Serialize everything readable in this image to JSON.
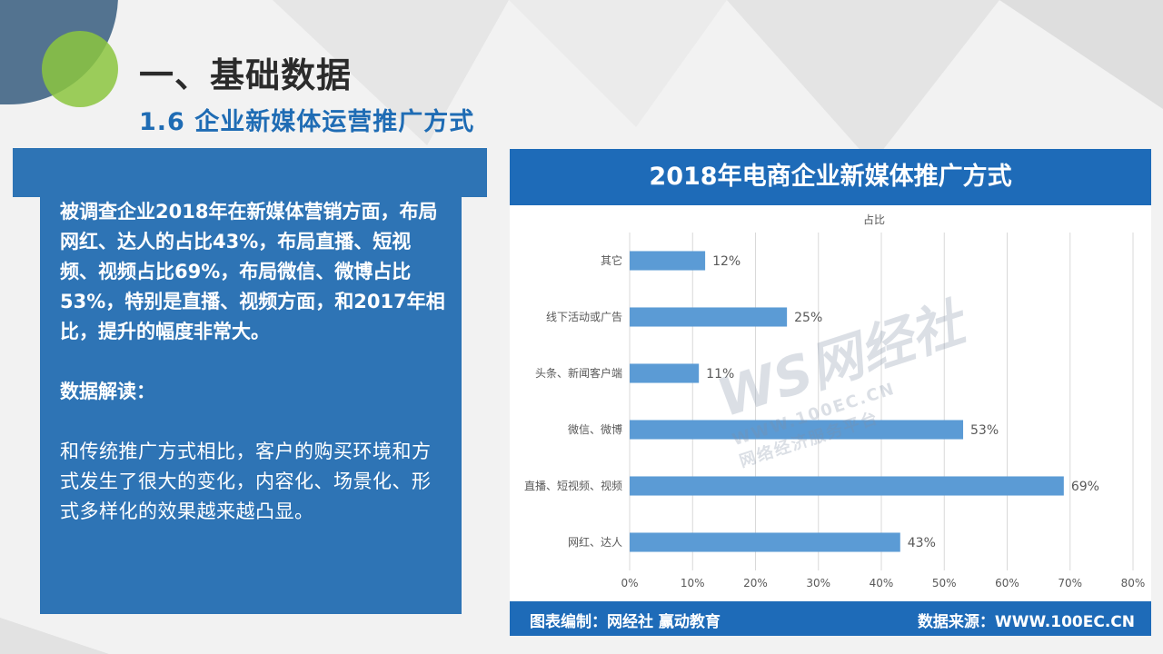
{
  "page": {
    "title": "一、基础数据",
    "subtitle": "1.6 企业新媒体运营推广方式"
  },
  "panel": {
    "paragraph1": "被调查企业2018年在新媒体营销方面，布局网红、达人的占比43%，布局直播、短视频、视频占比69%，布局微信、微博占比53%，特别是直播、视频方面，和2017年相比，提升的幅度非常大。",
    "heading": "数据解读：",
    "paragraph2": "和传统推广方式相比，客户的购买环境和方式发生了很大的变化，内容化、场景化、形式多样化的效果越来越凸显。"
  },
  "chart_header": "2018年电商企业新媒体推广方式",
  "chart_footer": {
    "left": "图表编制：网经社 赢动教育",
    "right": "数据来源：WWW.100EC.CN"
  },
  "watermark": {
    "logo": "WS网经社",
    "url": "WWW.100EC.CN",
    "tagline": "网络经济服务平台"
  },
  "colors": {
    "accent": "#1e6bb8",
    "panel": "#2e74b5",
    "bar": "#5b9bd5",
    "green": "#8cc63f"
  },
  "chart_data": {
    "type": "bar",
    "orientation": "horizontal",
    "title": "占比",
    "categories": [
      "其它",
      "线下活动或广告",
      "头条、新闻客户端",
      "微信、微博",
      "直播、短视频、视频",
      "网红、达人"
    ],
    "values": [
      12,
      25,
      11,
      53,
      69,
      43
    ],
    "value_labels": [
      "12%",
      "25%",
      "11%",
      "53%",
      "69%",
      "43%"
    ],
    "xlim": [
      0,
      80
    ],
    "xticks": [
      "0%",
      "10%",
      "20%",
      "30%",
      "40%",
      "50%",
      "60%",
      "70%",
      "80%"
    ],
    "grid": true,
    "legend": "none"
  }
}
